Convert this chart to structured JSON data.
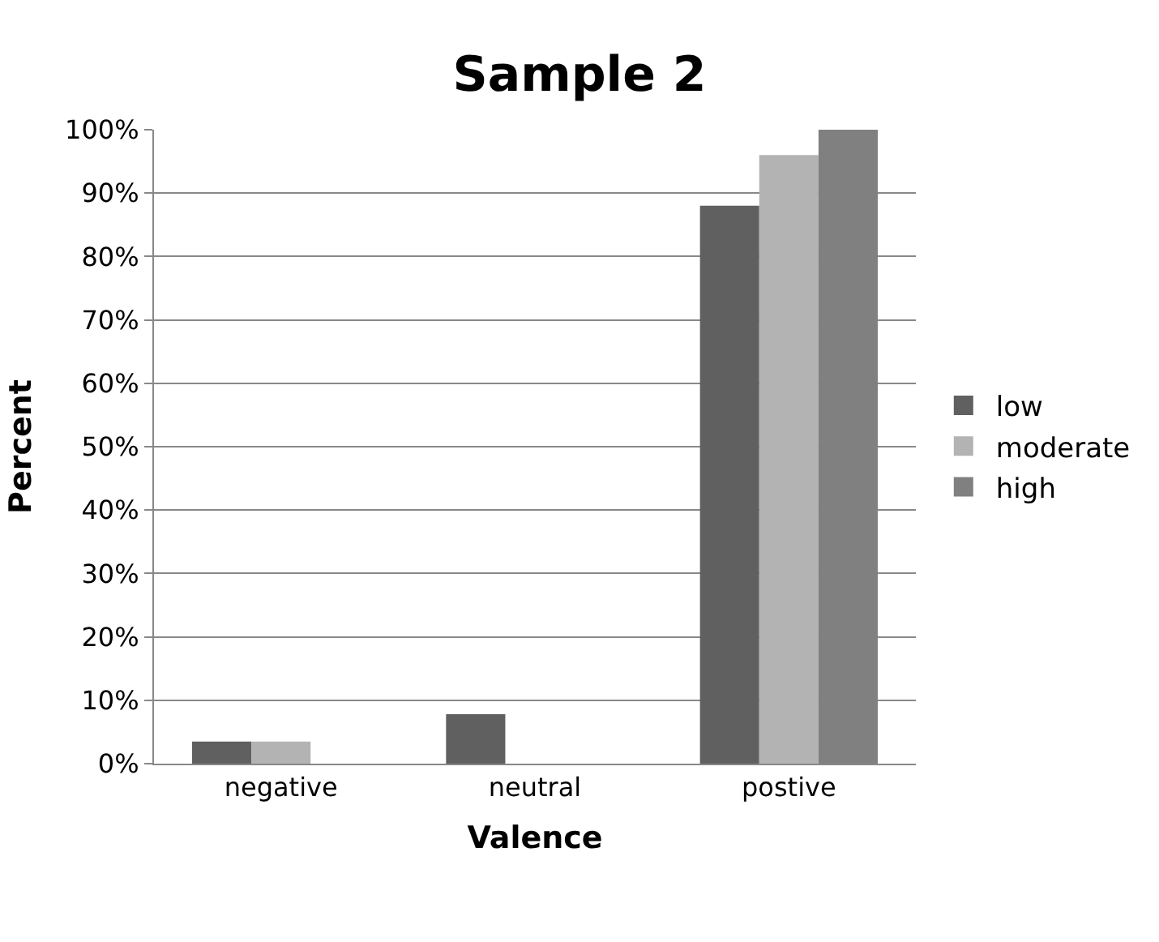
{
  "chart_data": {
    "type": "bar",
    "title": "Sample 2",
    "xlabel": "Valence",
    "ylabel": "Percent",
    "categories": [
      "negative",
      "neutral",
      "postive"
    ],
    "series": [
      {
        "name": "low",
        "color": "#606060",
        "values": [
          3.5,
          7.8,
          88
        ]
      },
      {
        "name": "moderate",
        "color": "#b3b3b3",
        "values": [
          3.5,
          0,
          96
        ]
      },
      {
        "name": "high",
        "color": "#808080",
        "values": [
          0,
          0,
          100
        ]
      }
    ],
    "ylim": [
      0,
      100
    ],
    "yticks": [
      {
        "value": 0,
        "label": "0%"
      },
      {
        "value": 10,
        "label": "10%"
      },
      {
        "value": 20,
        "label": "20%"
      },
      {
        "value": 30,
        "label": "30%"
      },
      {
        "value": 40,
        "label": "40%"
      },
      {
        "value": 50,
        "label": "50%"
      },
      {
        "value": 60,
        "label": "60%"
      },
      {
        "value": 70,
        "label": "70%"
      },
      {
        "value": 80,
        "label": "80%"
      },
      {
        "value": 90,
        "label": "90%"
      },
      {
        "value": 100,
        "label": "100%"
      }
    ],
    "grid": "y",
    "legend": "right"
  }
}
